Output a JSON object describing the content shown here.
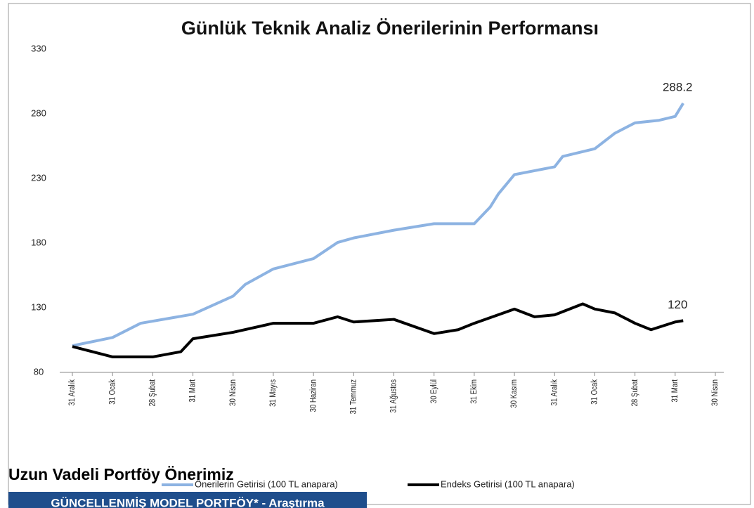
{
  "chart_data": {
    "type": "line",
    "title": "Günlük Teknik Analiz Önerilerinin Performansı",
    "ylim": [
      80,
      330
    ],
    "yticks": [
      80,
      130,
      180,
      230,
      280,
      330
    ],
    "xlim": [
      0,
      16
    ],
    "xticks": [
      {
        "value": 0,
        "label": "31 Aralık"
      },
      {
        "value": 1,
        "label": "31 Ocak"
      },
      {
        "value": 2,
        "label": "28 Şubat"
      },
      {
        "value": 3,
        "label": "31 Mart"
      },
      {
        "value": 4,
        "label": "30 Nisan"
      },
      {
        "value": 5,
        "label": "31 Mayıs"
      },
      {
        "value": 6,
        "label": "30 Haziran"
      },
      {
        "value": 7,
        "label": "31 Temmuz"
      },
      {
        "value": 8,
        "label": "31 Ağustos"
      },
      {
        "value": 9,
        "label": "30 Eylül"
      },
      {
        "value": 10,
        "label": "31 Ekim"
      },
      {
        "value": 11,
        "label": "30 Kasım"
      },
      {
        "value": 12,
        "label": "31 Aralık"
      },
      {
        "value": 13,
        "label": "31 Ocak"
      },
      {
        "value": 14,
        "label": "28 Şubat"
      },
      {
        "value": 15,
        "label": "31 Mart"
      },
      {
        "value": 16,
        "label": "30 Nisan"
      }
    ],
    "legend": "bottom",
    "series": [
      {
        "name": "Önerilerin Getirisi (100 TL anapara)",
        "color": "#8db3e2",
        "x": [
          0,
          1,
          1.7,
          3,
          4,
          4.3,
          5,
          6,
          6.6,
          7,
          8,
          9,
          10,
          10.4,
          10.6,
          11,
          12,
          12.2,
          13,
          13.5,
          14,
          14.6,
          15,
          15.2
        ],
        "values": [
          100.6,
          107,
          118,
          125,
          139,
          148,
          160,
          168,
          180.5,
          184,
          190,
          195,
          195,
          208,
          218,
          233,
          239,
          247,
          253,
          265,
          273,
          275,
          278,
          288.2
        ]
      },
      {
        "name": "Endeks Getirisi (100 TL anapara)",
        "color": "#000000",
        "x": [
          0,
          0.5,
          1,
          2,
          2.7,
          3,
          4,
          5,
          6,
          6.6,
          7,
          8,
          9,
          9.6,
          10,
          11,
          11.5,
          12,
          12.7,
          13,
          13.5,
          14,
          14.4,
          15,
          15.2
        ],
        "values": [
          100,
          96,
          92,
          92,
          96,
          106,
          111,
          118,
          118,
          123,
          119,
          121,
          110,
          113,
          118,
          129,
          123,
          124.5,
          133,
          129,
          126,
          118,
          113,
          119,
          120
        ]
      }
    ]
  },
  "heading": "Uzun Vadeli Portföy Önerimiz",
  "box_title": "GÜNCELLENMİŞ MODEL PORTFÖY* - Araştırma"
}
